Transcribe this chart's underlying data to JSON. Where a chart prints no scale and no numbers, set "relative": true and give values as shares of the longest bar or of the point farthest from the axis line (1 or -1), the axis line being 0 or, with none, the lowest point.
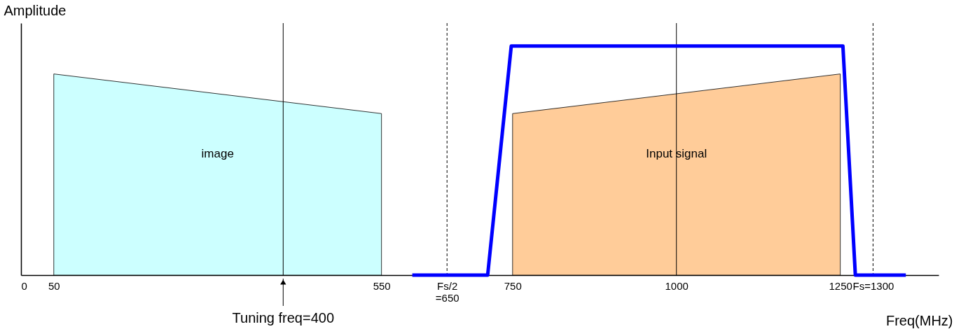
{
  "chart_data": {
    "type": "area",
    "ylabel": "Amplitude",
    "xlabel": "Freq(MHz)",
    "relative": true,
    "xlim": [
      0,
      1400
    ],
    "grid": false,
    "xticks": [
      0,
      50,
      550,
      {
        "value": 650,
        "label": "Fs/2\n=650"
      },
      750,
      1000,
      1250,
      {
        "value": 1300,
        "label": "Fs=1300"
      }
    ],
    "series": [
      {
        "name": "image",
        "color": "#ccffff",
        "x": [
          50,
          550
        ],
        "values": [
          0.878,
          0.705
        ]
      },
      {
        "name": "Input signal",
        "color": "#ffcc99",
        "x": [
          750,
          1250
        ],
        "values": [
          0.705,
          0.878
        ]
      },
      {
        "type": "line",
        "color": "#0000ff",
        "x": [
          597,
          712,
          748,
          1254,
          1273,
          1350
        ],
        "values": [
          0,
          0,
          1,
          1,
          0,
          0
        ]
      }
    ],
    "ref_lines": [
      {
        "axis": "x",
        "value": 400,
        "label": "Tuning freq=400"
      },
      {
        "axis": "x",
        "value": 1000
      },
      {
        "axis": "x",
        "value": 650,
        "line_style": "dashed"
      },
      {
        "axis": "x",
        "value": 1300,
        "line_style": "dashed"
      }
    ]
  }
}
